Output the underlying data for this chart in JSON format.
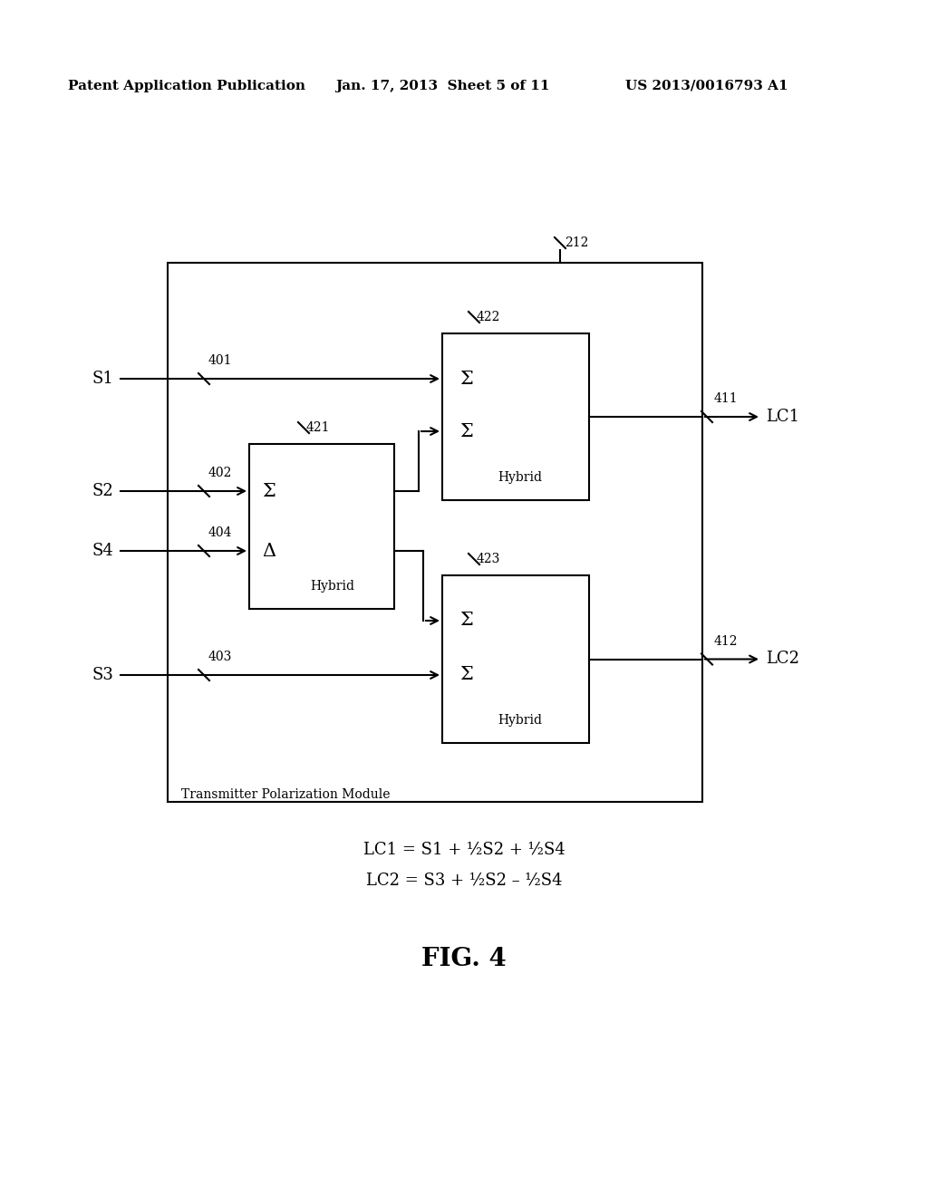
{
  "bg_color": "#ffffff",
  "header_left": "Patent Application Publication",
  "header_center": "Jan. 17, 2013  Sheet 5 of 11",
  "header_right": "US 2013/0016793 A1",
  "fig_label": "FIG. 4",
  "eq1": "LC1 = S1 + ½S2 + ½S4",
  "eq2": "LC2 = S3 + ½S2 – ½S4",
  "outer_box_label": "Transmitter Polarization Module",
  "sigma": "Σ",
  "delta": "Δ",
  "hybrid_label": "Hybrid"
}
